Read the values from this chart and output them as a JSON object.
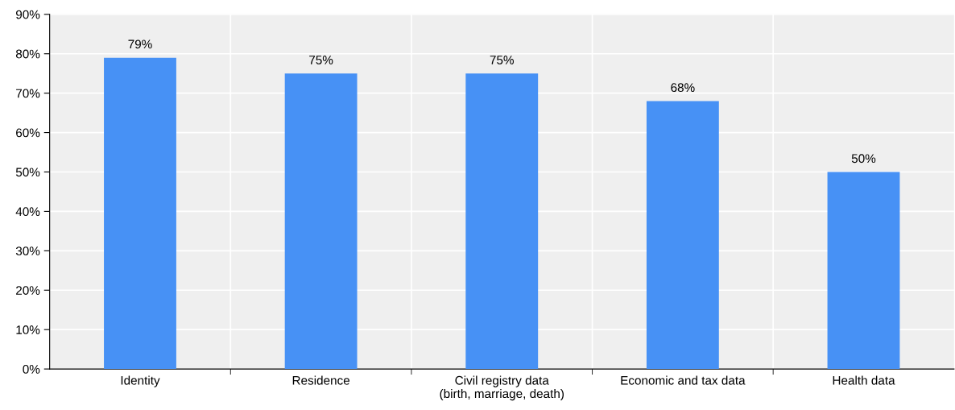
{
  "chart_data": {
    "type": "bar",
    "categories": [
      "Identity",
      "Residence",
      "Civil registry data\n(birth, marriage, death)",
      "Economic and tax data",
      "Health data"
    ],
    "values": [
      79,
      75,
      75,
      68,
      50
    ],
    "value_labels": [
      "79%",
      "75%",
      "75%",
      "68%",
      "50%"
    ],
    "color": "#4791f5",
    "ylim": [
      0,
      90
    ],
    "yticks": [
      {
        "value": 0,
        "label": "0%"
      },
      {
        "value": 10,
        "label": "10%"
      },
      {
        "value": 20,
        "label": "20%"
      },
      {
        "value": 30,
        "label": "30%"
      },
      {
        "value": 40,
        "label": "40%"
      },
      {
        "value": 50,
        "label": "50%"
      },
      {
        "value": 60,
        "label": "60%"
      },
      {
        "value": 70,
        "label": "70%"
      },
      {
        "value": 80,
        "label": "80%"
      },
      {
        "value": 90,
        "label": "90%"
      }
    ],
    "grid": true
  }
}
